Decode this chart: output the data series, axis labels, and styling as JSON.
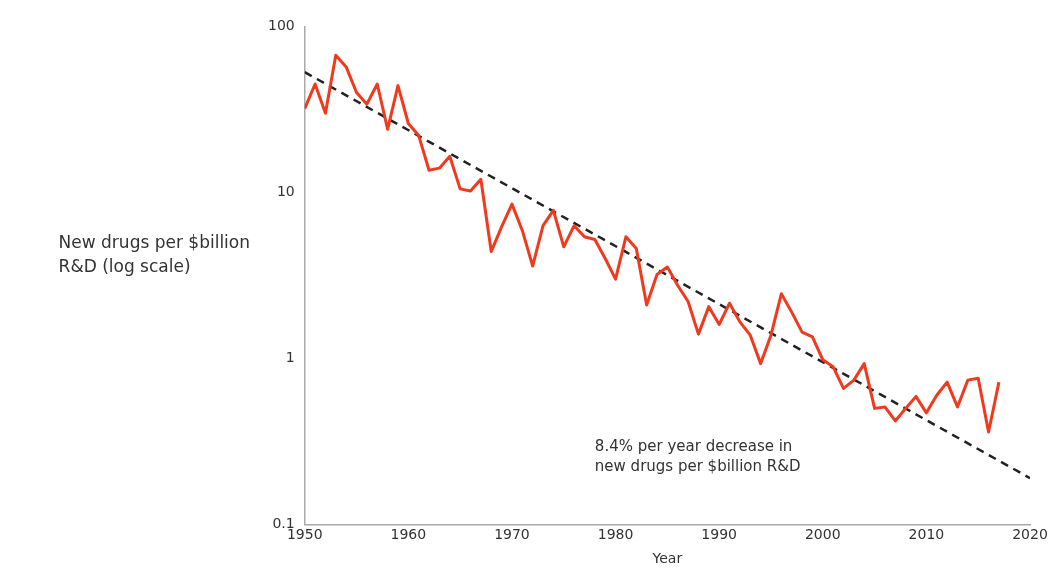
{
  "chart_data": {
    "type": "line",
    "xlabel": "Year",
    "ylabel": "New drugs per $billion\nR&D (log scale)",
    "log": "y",
    "grid": false,
    "legend": false,
    "marker": "none",
    "xlim": [
      1950,
      2020
    ],
    "xticks": [
      1950,
      1960,
      1970,
      1980,
      1990,
      2000,
      2010,
      2020
    ],
    "ylim": [
      0.1,
      100
    ],
    "yticks": [
      0.1,
      1,
      10,
      100
    ],
    "annotations": [
      "8.4% per year decrease in\nnew drugs per $billion R&D"
    ],
    "series": [
      {
        "type": "line",
        "color": "#f03a1e",
        "line_style": "solid",
        "x": [
          1950,
          1951,
          1952,
          1953,
          1954,
          1955,
          1956,
          1957,
          1958,
          1959,
          1960,
          1961,
          1962,
          1963,
          1964,
          1965,
          1966,
          1967,
          1968,
          1969,
          1970,
          1971,
          1972,
          1973,
          1974,
          1975,
          1976,
          1977,
          1978,
          1979,
          1980,
          1981,
          1982,
          1983,
          1984,
          1985,
          1986,
          1987,
          1988,
          1989,
          1990,
          1991,
          1992,
          1993,
          1994,
          1995,
          1996,
          1997,
          1998,
          1999,
          2000,
          2001,
          2002,
          2003,
          2004,
          2005,
          2006,
          2007,
          2008,
          2009,
          2010,
          2011,
          2012,
          2013,
          2014,
          2015,
          2016,
          2017
        ],
        "values": [
          32,
          45,
          30,
          67,
          57,
          40,
          34,
          45,
          24,
          44,
          26,
          22,
          13.6,
          14,
          16.5,
          10.5,
          10.2,
          12,
          4.4,
          6.2,
          8.5,
          5.9,
          3.6,
          6.3,
          7.8,
          4.7,
          6.3,
          5.4,
          5.2,
          4,
          3,
          5.4,
          4.6,
          2.1,
          3.2,
          3.55,
          2.75,
          2.2,
          1.4,
          2.05,
          1.6,
          2.15,
          1.66,
          1.38,
          0.93,
          1.38,
          2.45,
          1.9,
          1.44,
          1.35,
          0.98,
          0.89,
          0.66,
          0.74,
          0.93,
          0.5,
          0.51,
          0.42,
          0.5,
          0.59,
          0.47,
          0.6,
          0.72,
          0.51,
          0.74,
          0.76,
          0.36,
          0.72
        ]
      },
      {
        "type": "line",
        "color": "#222222",
        "line_style": "dashed",
        "x": [
          1950,
          2020
        ],
        "values": [
          53,
          0.19
        ]
      }
    ]
  }
}
